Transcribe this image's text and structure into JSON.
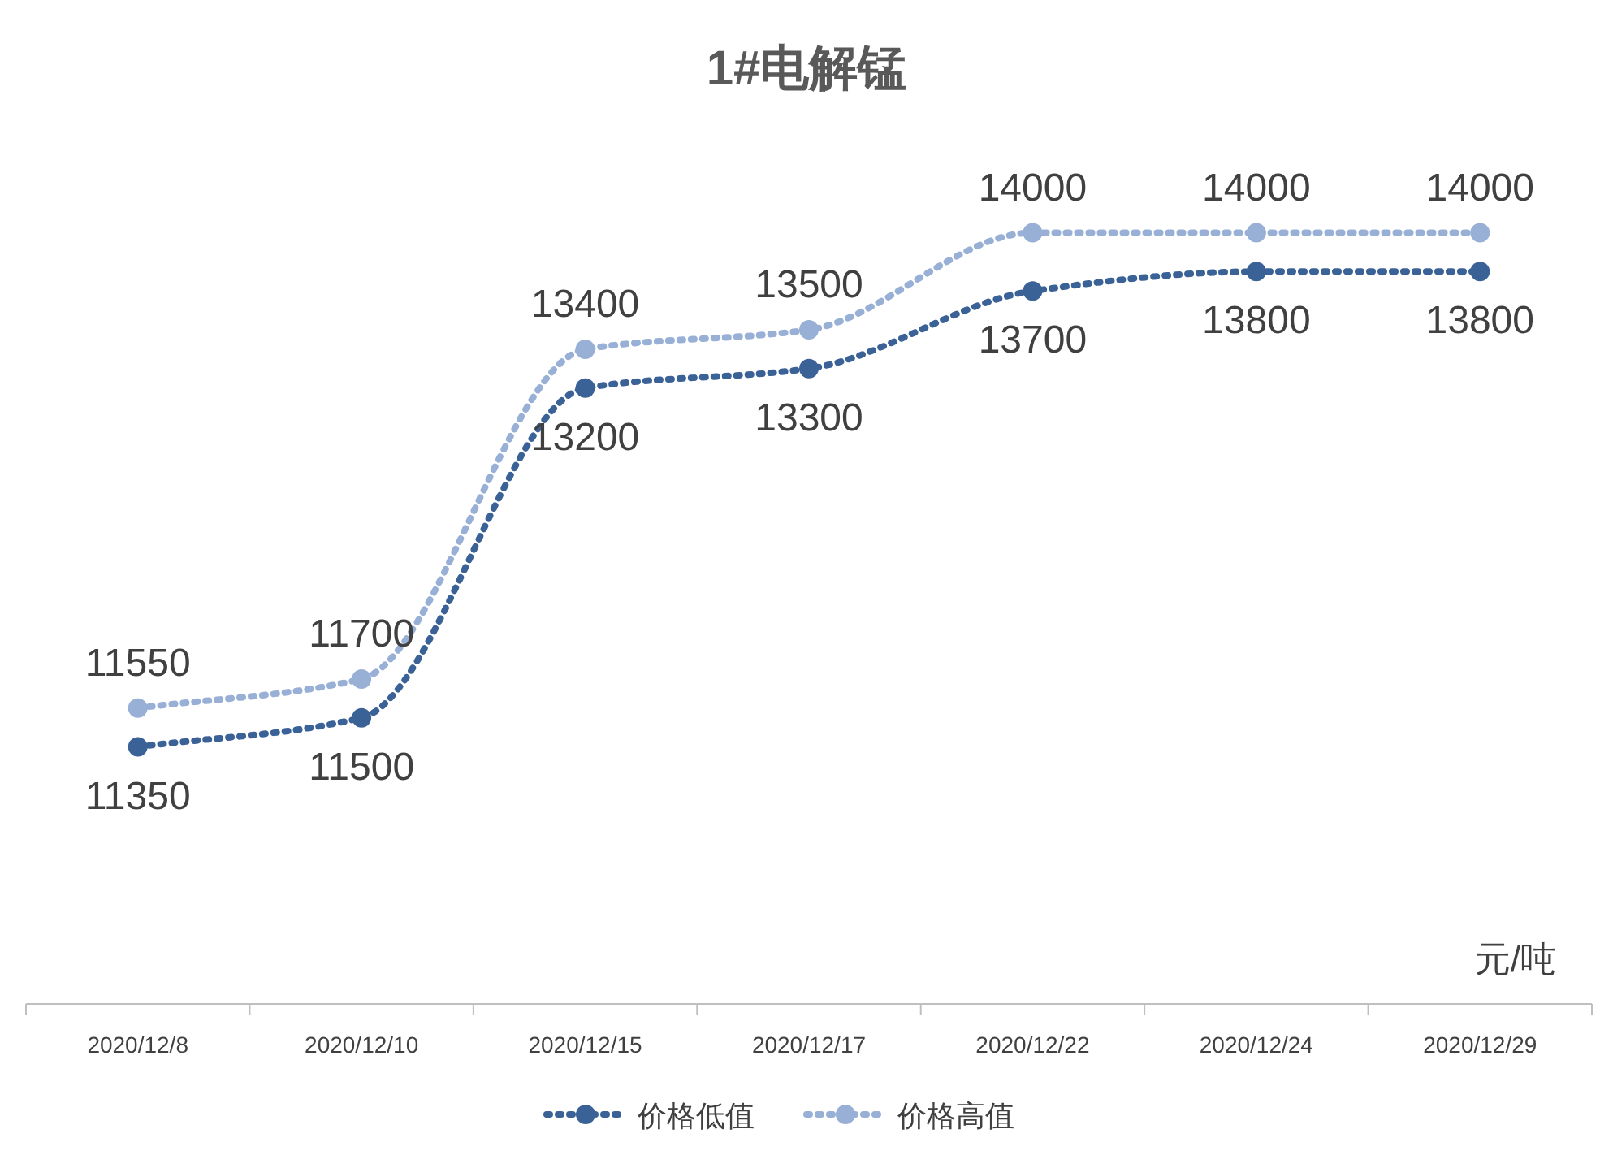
{
  "chart_data": {
    "type": "line",
    "title": "1#电解锰",
    "categories": [
      "2020/12/8",
      "2020/12/10",
      "2020/12/15",
      "2020/12/17",
      "2020/12/22",
      "2020/12/24",
      "2020/12/29"
    ],
    "series": [
      {
        "name": "价格低值",
        "color": "#3a6297",
        "values": [
          11350,
          11500,
          13200,
          13300,
          13700,
          13800,
          13800
        ]
      },
      {
        "name": "价格高值",
        "color": "#98afd6",
        "values": [
          11550,
          11700,
          13400,
          13500,
          14000,
          14000,
          14000
        ]
      }
    ],
    "data_labels": true,
    "marker": "circle",
    "line_style": "dotted",
    "legend": "bottom",
    "annotations": [
      "元/吨"
    ]
  }
}
